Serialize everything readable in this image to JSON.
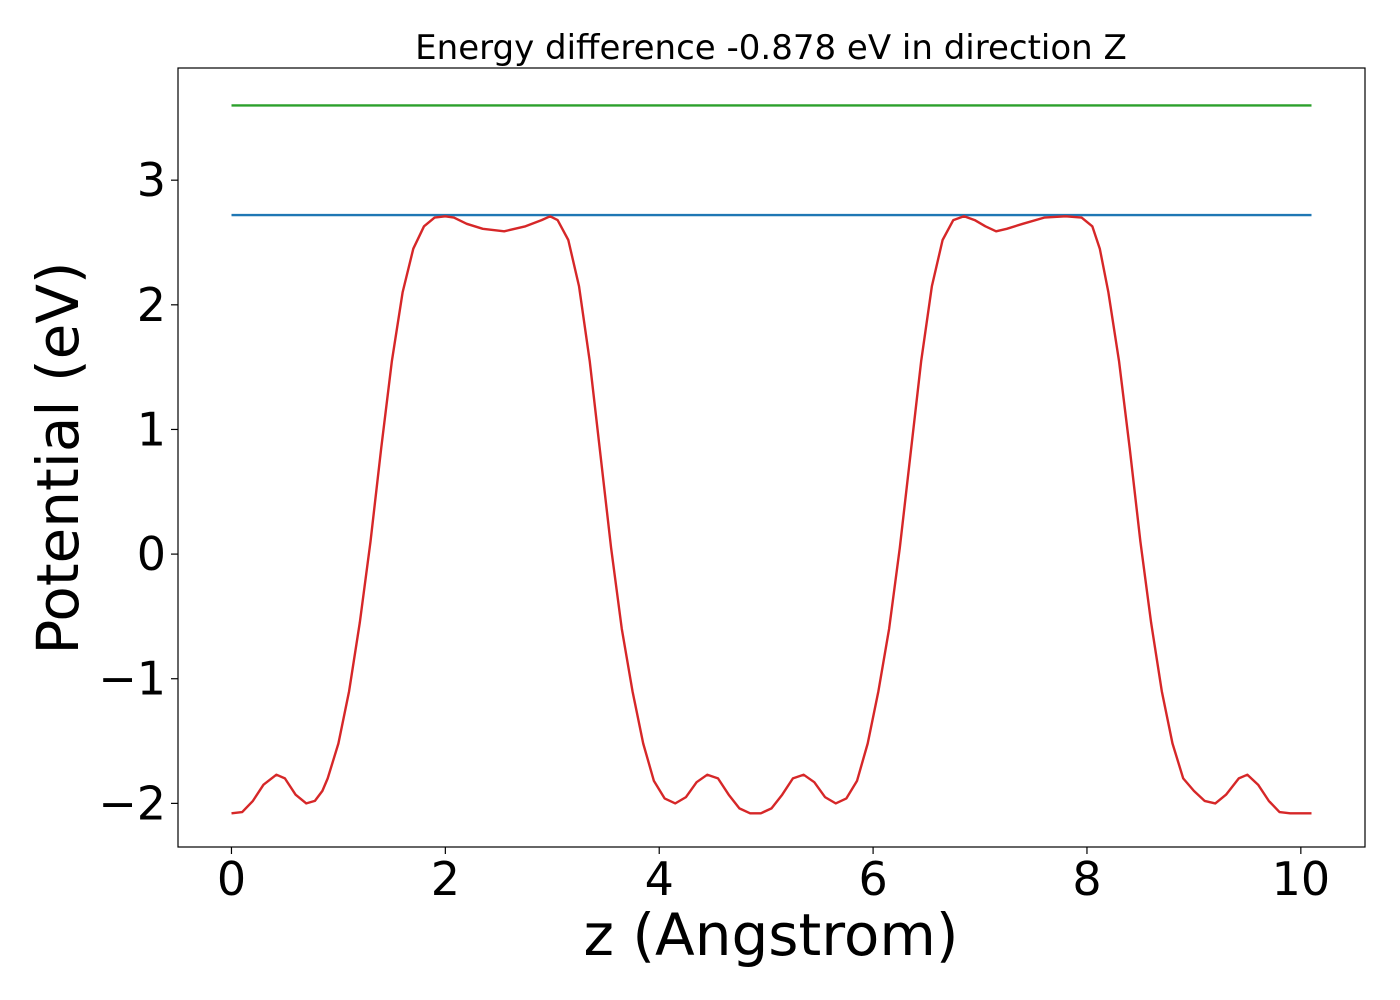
{
  "chart_data": {
    "type": "line",
    "title": "Energy difference -0.878 eV in direction Z",
    "xlabel": "z (Angstrom)",
    "ylabel": "Potential (eV)",
    "xlim": [
      -0.5,
      10.6
    ],
    "ylim": [
      -2.35,
      3.9
    ],
    "grid": false,
    "x_ticks": [
      0,
      2,
      4,
      6,
      8,
      10
    ],
    "x_tick_labels": [
      "0",
      "2",
      "4",
      "6",
      "8",
      "10"
    ],
    "y_ticks": [
      -2,
      -1,
      0,
      1,
      2,
      3
    ],
    "y_tick_labels": [
      "−2",
      "−1",
      "0",
      "1",
      "2",
      "3"
    ],
    "series": [
      {
        "color": "#2ca02c",
        "x": [
          0,
          10.1
        ],
        "y": [
          3.6,
          3.6
        ]
      },
      {
        "color": "#1f77b4",
        "x": [
          0,
          10.1
        ],
        "y": [
          2.72,
          2.72
        ]
      },
      {
        "color": "#d62728",
        "x": [
          0.0,
          0.1,
          0.2,
          0.3,
          0.42,
          0.5,
          0.6,
          0.7,
          0.78,
          0.85,
          0.9,
          1.0,
          1.1,
          1.2,
          1.3,
          1.4,
          1.5,
          1.6,
          1.7,
          1.8,
          1.9,
          2.0,
          2.08,
          2.2,
          2.35,
          2.55,
          2.75,
          2.9,
          2.98,
          3.05,
          3.15,
          3.25,
          3.35,
          3.45,
          3.55,
          3.65,
          3.75,
          3.85,
          3.95,
          4.05,
          4.15,
          4.25,
          4.35,
          4.45,
          4.55,
          4.65,
          4.75,
          4.85,
          4.95,
          5.05,
          5.15,
          5.25,
          5.35,
          5.45,
          5.55,
          5.65,
          5.75,
          5.85,
          5.95,
          6.05,
          6.15,
          6.25,
          6.35,
          6.45,
          6.55,
          6.65,
          6.75,
          6.85,
          6.95,
          7.05,
          7.15,
          7.25,
          7.4,
          7.6,
          7.8,
          7.95,
          8.05,
          8.12,
          8.2,
          8.3,
          8.4,
          8.5,
          8.6,
          8.7,
          8.8,
          8.9,
          9.0,
          9.1,
          9.2,
          9.3,
          9.42,
          9.5,
          9.6,
          9.7,
          9.8,
          9.9,
          10.0,
          10.1
        ],
        "y": [
          -2.08,
          -2.07,
          -1.98,
          -1.85,
          -1.77,
          -1.8,
          -1.93,
          -2.0,
          -1.98,
          -1.9,
          -1.8,
          -1.52,
          -1.1,
          -0.55,
          0.1,
          0.85,
          1.55,
          2.1,
          2.45,
          2.63,
          2.7,
          2.71,
          2.7,
          2.65,
          2.61,
          2.59,
          2.63,
          2.68,
          2.71,
          2.68,
          2.52,
          2.15,
          1.55,
          0.8,
          0.05,
          -0.6,
          -1.1,
          -1.52,
          -1.82,
          -1.96,
          -2.0,
          -1.95,
          -1.83,
          -1.77,
          -1.8,
          -1.93,
          -2.04,
          -2.08,
          -2.08,
          -2.04,
          -1.93,
          -1.8,
          -1.77,
          -1.83,
          -1.95,
          -2.0,
          -1.96,
          -1.82,
          -1.52,
          -1.1,
          -0.6,
          0.05,
          0.8,
          1.55,
          2.15,
          2.52,
          2.68,
          2.71,
          2.68,
          2.63,
          2.59,
          2.61,
          2.65,
          2.7,
          2.71,
          2.7,
          2.63,
          2.45,
          2.1,
          1.55,
          0.85,
          0.1,
          -0.55,
          -1.1,
          -1.52,
          -1.8,
          -1.9,
          -1.98,
          -2.0,
          -1.93,
          -1.8,
          -1.77,
          -1.85,
          -1.98,
          -2.07,
          -2.08,
          -2.08,
          -2.08
        ]
      }
    ]
  }
}
